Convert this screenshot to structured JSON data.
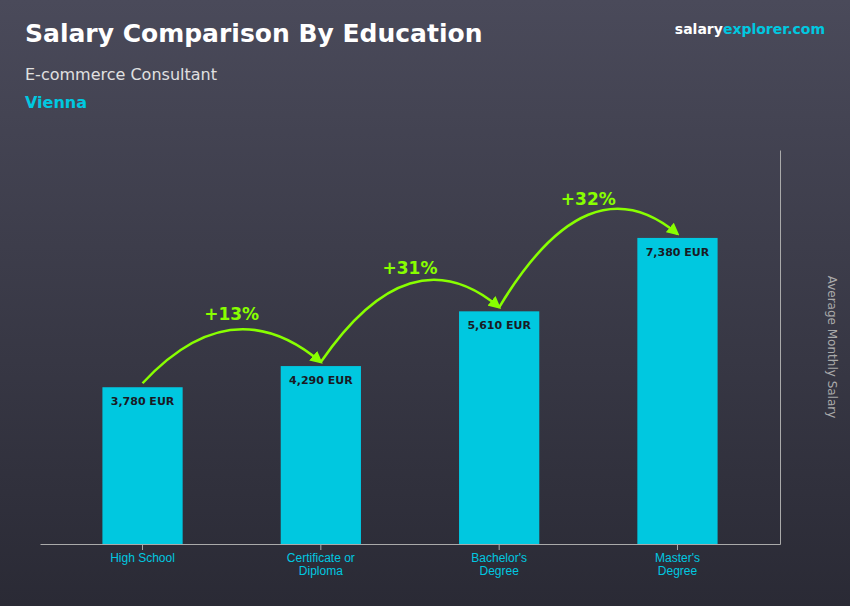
{
  "chart_data": {
    "type": "bar",
    "title": "Salary Comparison By Education",
    "subtitle": [
      "E-commerce Consultant",
      "Vienna"
    ],
    "source": [
      "salary",
      "explorer",
      ".com"
    ],
    "ylabel": "Average Monthly Salary",
    "categories": [
      "High School",
      "Certificate or\nDiploma",
      "Bachelor's\nDegree",
      "Master's\nDegree"
    ],
    "values": [
      3780,
      4290,
      5610,
      7380
    ],
    "value_labels": [
      "3,780 EUR",
      "4,290 EUR",
      "5,610 EUR",
      "7,380 EUR"
    ],
    "data_labels": true,
    "annotations": [
      {
        "text": "+13%",
        "color": "#88ff00"
      },
      {
        "text": "+31%",
        "color": "#88ff00"
      },
      {
        "text": "+32%",
        "color": "#88ff00"
      }
    ],
    "color": "#00c8e0",
    "ylim": [
      0,
      9500
    ],
    "yticks": [],
    "tick_labels": "x",
    "grid": false
  }
}
